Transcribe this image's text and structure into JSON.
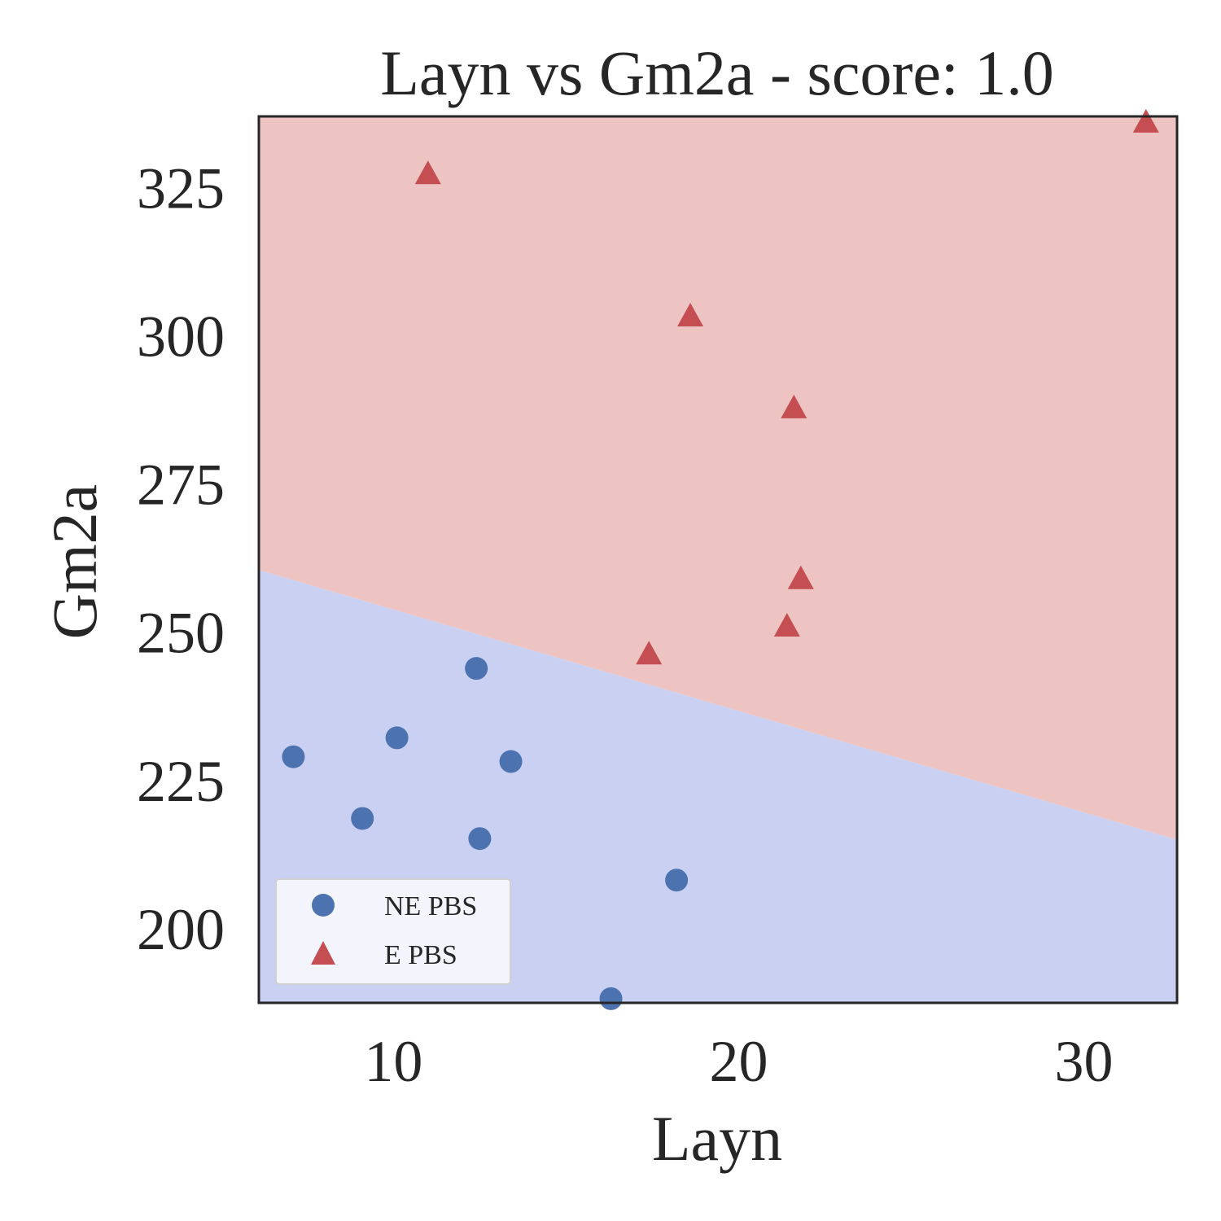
{
  "chart_data": {
    "type": "scatter",
    "title": "Layn vs Gm2a - score: 1.0",
    "xlabel": "Layn",
    "ylabel": "Gm2a",
    "xlim": [
      6.1,
      32.7
    ],
    "ylim": [
      187.5,
      337.0
    ],
    "xticks": [
      10,
      20,
      30
    ],
    "yticks": [
      200,
      225,
      250,
      275,
      300,
      325
    ],
    "grid": false,
    "legend_position": "lower-left",
    "decision_boundary": {
      "line": [
        [
          6.1,
          260.5
        ],
        [
          32.7,
          215.0
        ]
      ],
      "above_class": "E PBS",
      "below_class": "NE PBS",
      "colors": {
        "above": "#eec4c3",
        "below": "#c9d0f1"
      }
    },
    "series": [
      {
        "name": "NE PBS",
        "marker": "circle",
        "color": "#4c72b0",
        "points": [
          [
            7.1,
            229.0
          ],
          [
            10.1,
            232.2
          ],
          [
            9.1,
            218.6
          ],
          [
            12.4,
            243.9
          ],
          [
            12.5,
            215.2
          ],
          [
            13.4,
            228.2
          ],
          [
            18.2,
            208.2
          ],
          [
            16.3,
            188.2
          ]
        ]
      },
      {
        "name": "E PBS",
        "marker": "triangle",
        "color": "#c44e52",
        "points": [
          [
            11.0,
            327.5
          ],
          [
            18.6,
            303.5
          ],
          [
            21.6,
            288.0
          ],
          [
            21.8,
            259.2
          ],
          [
            21.4,
            251.2
          ],
          [
            17.4,
            246.5
          ],
          [
            31.8,
            336.2
          ]
        ]
      }
    ]
  }
}
